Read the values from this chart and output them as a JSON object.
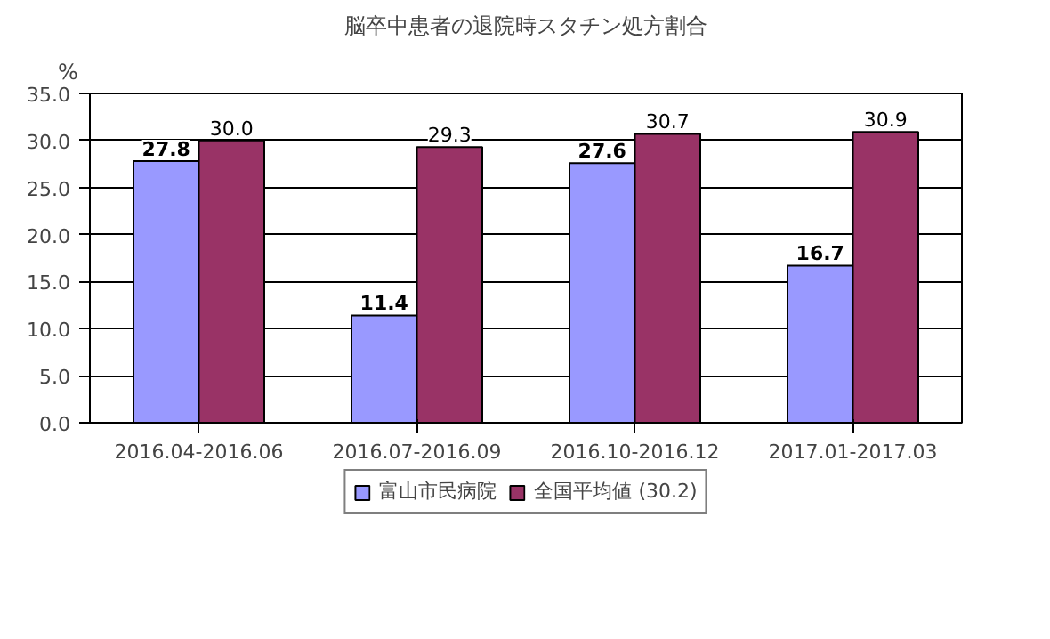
{
  "chart_data": {
    "type": "bar",
    "title": "脳卒中患者の退院時スタチン処方割合",
    "ylabel": "%",
    "categories": [
      "2016.04-2016.06",
      "2016.07-2016.09",
      "2016.10-2016.12",
      "2017.01-2017.03"
    ],
    "series": [
      {
        "name": "富山市民病院",
        "color": "#9999ff",
        "values": [
          27.8,
          11.4,
          27.6,
          16.7
        ],
        "value_labels": [
          "27.8",
          "11.4",
          "27.6",
          "16.7"
        ]
      },
      {
        "name": "全国平均値 (30.2)",
        "color": "#993366",
        "values": [
          30.0,
          29.3,
          30.7,
          30.9
        ],
        "value_labels": [
          "30.0",
          "29.3",
          "30.7",
          "30.9"
        ]
      }
    ],
    "ylim": [
      0,
      35
    ],
    "yticks": [
      {
        "value": 0,
        "label": "0.0"
      },
      {
        "value": 5,
        "label": "5.0"
      },
      {
        "value": 10,
        "label": "10.0"
      },
      {
        "value": 15,
        "label": "15.0"
      },
      {
        "value": 20,
        "label": "20.0"
      },
      {
        "value": 25,
        "label": "25.0"
      },
      {
        "value": 30,
        "label": "30.0"
      },
      {
        "value": 35,
        "label": "35.0"
      }
    ],
    "grid": "y",
    "legend": "bottom"
  }
}
